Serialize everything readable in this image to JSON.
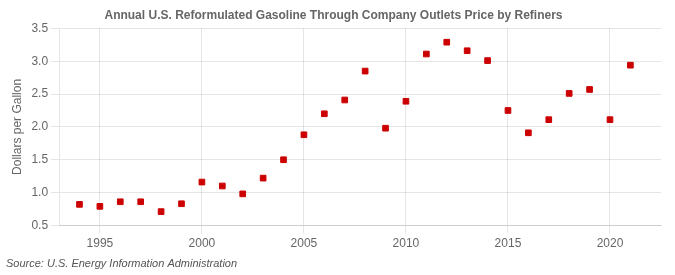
{
  "chart_data": {
    "type": "scatter",
    "title": "Annual U.S. Reformulated Gasoline Through Company Outlets Price by Refiners",
    "y_label": "Dollars per Gallon",
    "annotations": [
      "Source: U.S. Energy Information Administration"
    ],
    "x": [
      1994,
      1995,
      1996,
      1997,
      1998,
      1999,
      2000,
      2001,
      2002,
      2003,
      2004,
      2005,
      2006,
      2007,
      2008,
      2009,
      2010,
      2011,
      2012,
      2013,
      2014,
      2015,
      2016,
      2017,
      2018,
      2019,
      2020,
      2021
    ],
    "values": [
      0.82,
      0.79,
      0.86,
      0.86,
      0.71,
      0.83,
      1.16,
      1.1,
      0.98,
      1.22,
      1.5,
      1.88,
      2.2,
      2.41,
      2.85,
      1.98,
      2.39,
      3.11,
      3.29,
      3.16,
      3.01,
      2.25,
      1.91,
      2.11,
      2.51,
      2.57,
      2.11,
      2.94
    ],
    "color": "#cc0000",
    "marker": "square",
    "xlim": [
      1993.0,
      2022.5
    ],
    "xticks": [
      1995,
      2000,
      2005,
      2010,
      2015,
      2020
    ],
    "ylim": [
      0.5,
      3.5
    ],
    "yticks": [
      0.5,
      {
        "value": 1.0,
        "label": "1.0"
      },
      1.5,
      {
        "value": 2.0,
        "label": "2.0"
      },
      2.5,
      {
        "value": 3.0,
        "label": "3.0"
      },
      3.5
    ],
    "grid": true
  }
}
